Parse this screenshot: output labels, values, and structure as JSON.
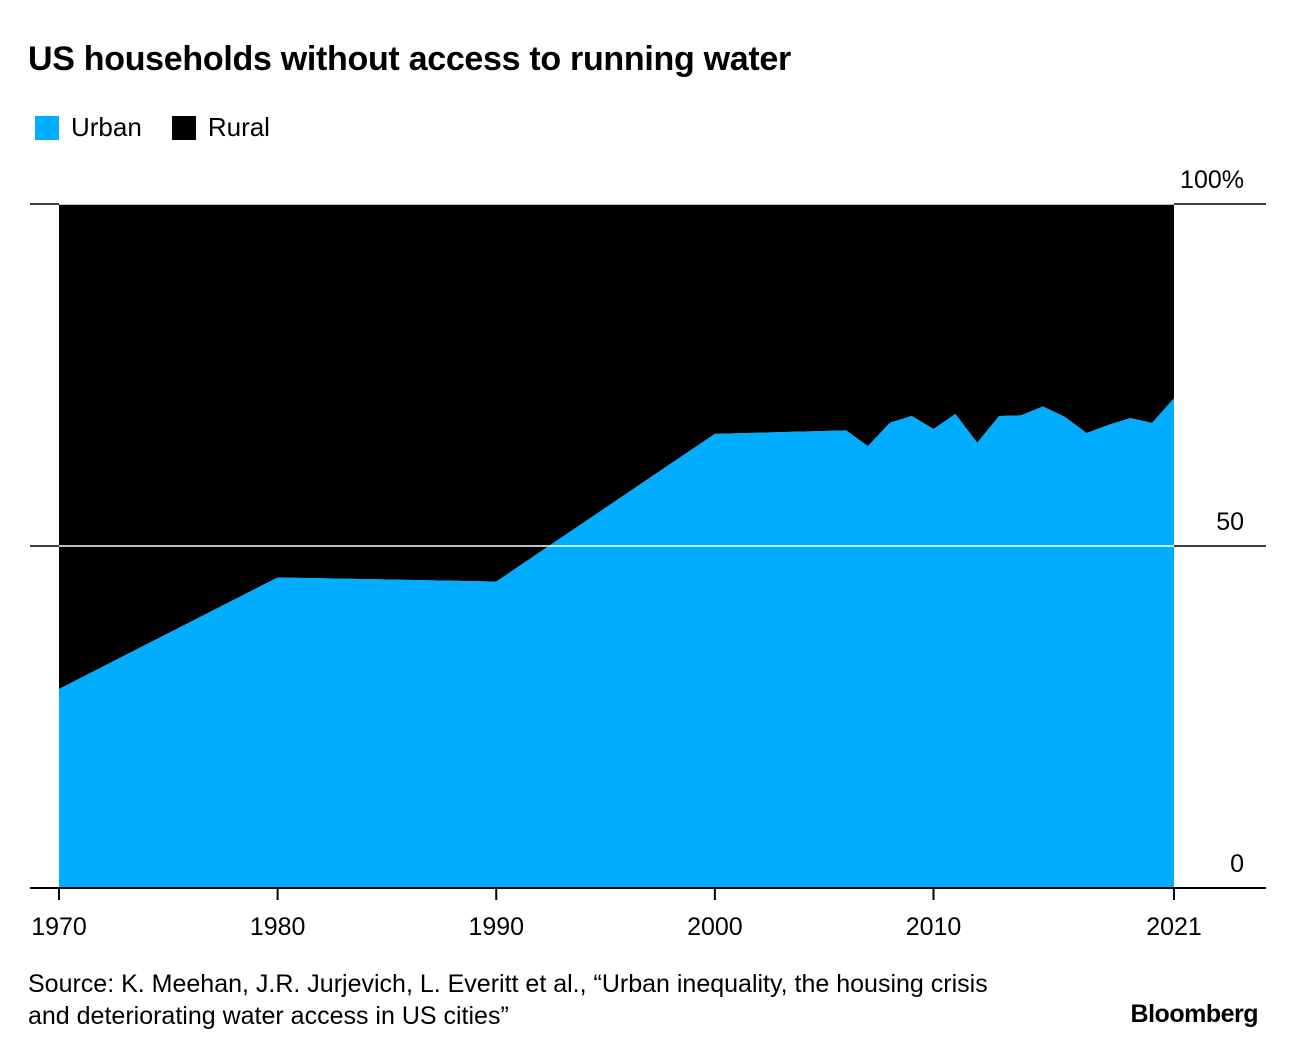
{
  "title": "US households without access to running water",
  "legend": [
    {
      "label": "Urban",
      "color": "#00adfe"
    },
    {
      "label": "Rural",
      "color": "#000000"
    }
  ],
  "source": "Source: K. Meehan, J.R. Jurjevich, L. Everitt et al., “Urban inequality, the housing crisis and deteriorating water access in US cities”",
  "brand": "Bloomberg",
  "chart_data": {
    "type": "area",
    "stacked_percent": true,
    "x": [
      1970,
      1980,
      1990,
      2000,
      2006,
      2007,
      2008,
      2009,
      2010,
      2011,
      2012,
      2013,
      2014,
      2015,
      2016,
      2017,
      2018,
      2019,
      2020,
      2021
    ],
    "series": [
      {
        "name": "Urban",
        "color": "#00adfe",
        "values": [
          29.1,
          45.4,
          44.8,
          66.4,
          66.9,
          64.6,
          68.0,
          69.0,
          67.1,
          69.3,
          65.1,
          69.0,
          69.1,
          70.4,
          68.9,
          66.5,
          67.7,
          68.7,
          68.0,
          71.6
        ]
      },
      {
        "name": "Rural",
        "color": "#000000",
        "values": [
          70.9,
          54.6,
          55.2,
          33.6,
          33.1,
          35.4,
          32.0,
          31.0,
          32.9,
          30.7,
          34.9,
          31.0,
          30.9,
          29.6,
          31.1,
          33.5,
          32.3,
          31.3,
          32.0,
          28.4
        ]
      }
    ],
    "x_ticks": [
      {
        "value": 1970,
        "label": "1970"
      },
      {
        "value": 1980,
        "label": "1980"
      },
      {
        "value": 1990,
        "label": "1990"
      },
      {
        "value": 2000,
        "label": "2000"
      },
      {
        "value": 2010,
        "label": "2010"
      },
      {
        "value": 2021,
        "label": "2021"
      }
    ],
    "y_ticks": [
      {
        "value": 100,
        "label": "100%"
      },
      {
        "value": 50,
        "label": "50"
      },
      {
        "value": 0,
        "label": "0"
      }
    ],
    "xlim": [
      1970,
      2021
    ],
    "ylim": [
      0,
      100
    ],
    "y_axis_position": "right",
    "legend_position": "top-left",
    "grid": true
  }
}
